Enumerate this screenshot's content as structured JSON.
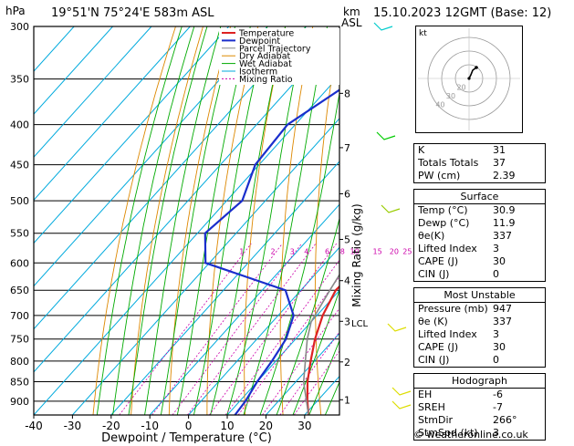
{
  "header": {
    "location": "19°51'N  75°24'E  583m  ASL",
    "datetime": "15.10.2023  12GMT  (Base: 12)",
    "hpa_unit": "hPa",
    "km_unit": "km",
    "asl_unit": "ASL"
  },
  "chart_data": {
    "type": "line",
    "xlabel": "Dewpoint / Temperature (°C)",
    "ylabel": "Mixing Ratio (g/kg)",
    "x_ticks": [
      -40,
      -30,
      -20,
      -10,
      0,
      10,
      20,
      30
    ],
    "x_range": [
      -40,
      39
    ],
    "pressure_range": [
      300,
      937
    ],
    "pressure_ticks": [
      300,
      350,
      400,
      450,
      500,
      550,
      600,
      650,
      700,
      750,
      800,
      850,
      900
    ],
    "km_ticks": [
      {
        "label": "8",
        "p": 365
      },
      {
        "label": "7",
        "p": 428
      },
      {
        "label": "6",
        "p": 490
      },
      {
        "label": "5",
        "p": 560
      },
      {
        "label": "4",
        "p": 632
      },
      {
        "label": "3",
        "p": 712
      },
      {
        "label": "2",
        "p": 802
      },
      {
        "label": "1",
        "p": 896
      }
    ],
    "lcl": {
      "label": "LCL",
      "p": 713
    },
    "mixing_ratio_labels": [
      "1",
      "2",
      "3",
      "4",
      "6",
      "8",
      "10",
      "15",
      "20",
      "25"
    ],
    "legend": [
      "Temperature",
      "Dewpoint",
      "Parcel Trajectory",
      "Dry Adiabat",
      "Wet Adiabat",
      "Isotherm",
      "Mixing Ratio"
    ],
    "legend_position": "top-left",
    "series": [
      {
        "name": "Temperature",
        "color": "#dd2222",
        "points": [
          {
            "p": 937,
            "t": 31
          },
          {
            "p": 900,
            "t": 27.5
          },
          {
            "p": 850,
            "t": 23
          },
          {
            "p": 800,
            "t": 19
          },
          {
            "p": 750,
            "t": 15
          },
          {
            "p": 700,
            "t": 11.5
          },
          {
            "p": 650,
            "t": 9
          },
          {
            "p": 620,
            "t": 9.5
          },
          {
            "p": 600,
            "t": 8
          },
          {
            "p": 550,
            "t": 4.5
          },
          {
            "p": 500,
            "t": -0.5
          },
          {
            "p": 450,
            "t": -6
          },
          {
            "p": 400,
            "t": -12
          },
          {
            "p": 350,
            "t": -19
          },
          {
            "p": 300,
            "t": -27
          }
        ]
      },
      {
        "name": "Dewpoint",
        "color": "#1a2ecc",
        "points": [
          {
            "p": 937,
            "t": 12
          },
          {
            "p": 900,
            "t": 11.5
          },
          {
            "p": 850,
            "t": 10
          },
          {
            "p": 800,
            "t": 9
          },
          {
            "p": 750,
            "t": 7.5
          },
          {
            "p": 700,
            "t": 4
          },
          {
            "p": 650,
            "t": -4
          },
          {
            "p": 600,
            "t": -31
          },
          {
            "p": 550,
            "t": -38
          },
          {
            "p": 500,
            "t": -36
          },
          {
            "p": 450,
            "t": -41
          },
          {
            "p": 400,
            "t": -42
          },
          {
            "p": 350,
            "t": -35
          },
          {
            "p": 300,
            "t": -42
          }
        ]
      },
      {
        "name": "Parcel Trajectory",
        "color": "#888888",
        "points": [
          {
            "p": 937,
            "t": 31
          },
          {
            "p": 850,
            "t": 22
          },
          {
            "p": 750,
            "t": 13
          },
          {
            "p": 713,
            "t": 10
          },
          {
            "p": 650,
            "t": 7.5
          },
          {
            "p": 600,
            "t": 5.5
          },
          {
            "p": 550,
            "t": 3
          },
          {
            "p": 500,
            "t": -0.5
          },
          {
            "p": 450,
            "t": -4.5
          },
          {
            "p": 400,
            "t": -10
          },
          {
            "p": 350,
            "t": -17
          },
          {
            "p": 300,
            "t": -25
          }
        ]
      }
    ]
  },
  "hodograph": {
    "label": "kt",
    "ring_labels": [
      "40",
      "30",
      "20"
    ]
  },
  "indices": [
    {
      "label": "K",
      "value": "31"
    },
    {
      "label": "Totals Totals",
      "value": "37"
    },
    {
      "label": "PW (cm)",
      "value": "2.39"
    }
  ],
  "surface": {
    "title": "Surface",
    "rows": [
      {
        "label": "Temp (°C)",
        "value": "30.9"
      },
      {
        "label": "Dewp (°C)",
        "value": "11.9"
      },
      {
        "label": "θe(K)",
        "value": "337"
      },
      {
        "label": "Lifted Index",
        "value": "3"
      },
      {
        "label": "CAPE (J)",
        "value": "30"
      },
      {
        "label": "CIN (J)",
        "value": "0"
      }
    ]
  },
  "most_unstable": {
    "title": "Most Unstable",
    "rows": [
      {
        "label": "Pressure (mb)",
        "value": "947"
      },
      {
        "label": "θe (K)",
        "value": "337"
      },
      {
        "label": "Lifted Index",
        "value": "3"
      },
      {
        "label": "CAPE (J)",
        "value": "30"
      },
      {
        "label": "CIN (J)",
        "value": "0"
      }
    ]
  },
  "hodograph_table": {
    "title": "Hodograph",
    "rows": [
      {
        "label": "EH",
        "value": "-6"
      },
      {
        "label": "SREH",
        "value": "-7"
      },
      {
        "label": "StmDir",
        "value": "266°"
      },
      {
        "label": "StmSpd (kt)",
        "value": "3"
      }
    ]
  },
  "copyright": "© weatheronline.co.uk",
  "colors": {
    "temperature": "#dd2222",
    "dewpoint": "#1a2ecc",
    "parcel": "#888888",
    "dry_adiabat": "#dd8800",
    "wet_adiabat": "#00aa00",
    "isotherm": "#00aadd",
    "mixing_ratio": "#cc00aa"
  }
}
